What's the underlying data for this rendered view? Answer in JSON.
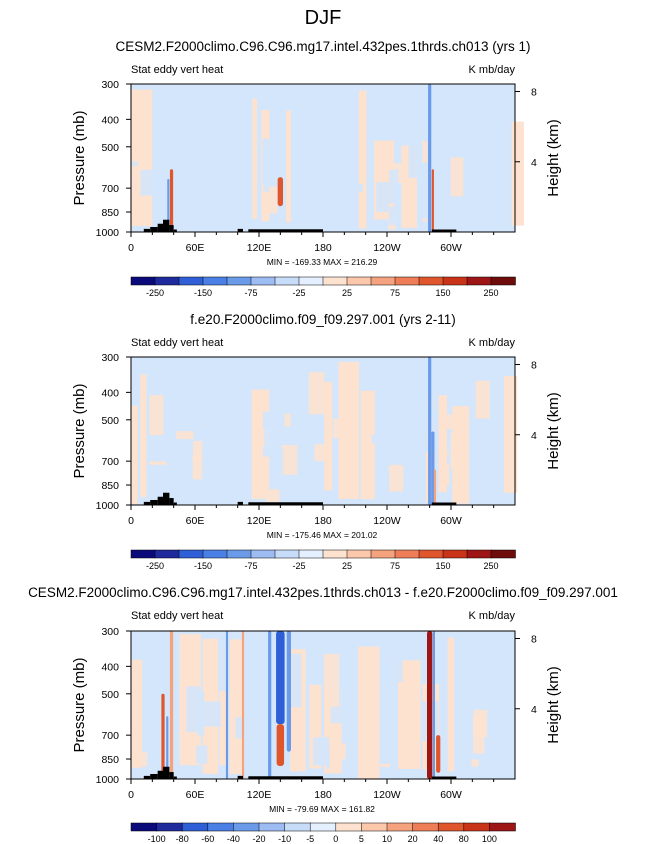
{
  "figure_title": "DJF",
  "colors": {
    "blue4": "#1f2a9c",
    "blue3": "#2f5fd6",
    "blue2": "#6b9ae8",
    "blue1": "#d4e6fb",
    "red1": "#fde2cf",
    "red2": "#f5a27e",
    "red3": "#e0562c",
    "red4": "#9e1515",
    "topo": "#000000",
    "frame": "#000000"
  },
  "chart_data": [
    {
      "type": "heatmap",
      "panel": "top",
      "title": "CESM2.F2000climo.C96.C96.mg17.intel.432pes.1thrds.ch013 (yrs 1)",
      "left_label": "Stat eddy vert heat",
      "right_label": "K mb/day",
      "ylabel": "Pressure (mb)",
      "ylabel_right": "Height (km)",
      "y_ticks": [
        "300",
        "400",
        "500",
        "700",
        "850",
        "1000"
      ],
      "y_tick_values": [
        300,
        400,
        500,
        700,
        850,
        1000
      ],
      "y_right_ticks": [
        "8",
        "4"
      ],
      "y_right_values": [
        8,
        4
      ],
      "x_ticks": [
        "0",
        "60E",
        "120E",
        "180",
        "120W",
        "60W"
      ],
      "x_tick_values": [
        0,
        60,
        120,
        180,
        240,
        300
      ],
      "xlim": [
        0,
        360
      ],
      "ylim": [
        1000,
        300
      ],
      "stats": "MIN = -169.33  MAX = 216.29",
      "colorbar_labels": [
        "-250",
        "-150",
        "-75",
        "-25",
        "25",
        "75",
        "150",
        "250"
      ],
      "features": [
        {
          "lon": 38,
          "p_top": 600,
          "p_bottom": 1000,
          "width": 3,
          "level": 3
        },
        {
          "lon": 35,
          "p_top": 650,
          "p_bottom": 1000,
          "width": 2,
          "level": -2
        },
        {
          "lon": 140,
          "p_top": 640,
          "p_bottom": 810,
          "width": 5,
          "level": 3
        },
        {
          "lon": 280,
          "p_top": 300,
          "p_bottom": 1000,
          "width": 3,
          "level": -2
        },
        {
          "lon": 283,
          "p_top": 600,
          "p_bottom": 1000,
          "width": 2,
          "level": 3
        }
      ]
    },
    {
      "type": "heatmap",
      "panel": "middle",
      "title": "f.e20.F2000climo.f09_f09.297.001 (yrs 2-11)",
      "left_label": "Stat eddy vert heat",
      "right_label": "K mb/day",
      "ylabel": "Pressure (mb)",
      "ylabel_right": "Height (km)",
      "y_ticks": [
        "300",
        "400",
        "500",
        "700",
        "850",
        "1000"
      ],
      "y_tick_values": [
        300,
        400,
        500,
        700,
        850,
        1000
      ],
      "y_right_ticks": [
        "8",
        "4"
      ],
      "y_right_values": [
        8,
        4
      ],
      "x_ticks": [
        "0",
        "60E",
        "120E",
        "180",
        "120W",
        "60W"
      ],
      "x_tick_values": [
        0,
        60,
        120,
        180,
        240,
        300
      ],
      "xlim": [
        0,
        360
      ],
      "ylim": [
        1000,
        300
      ],
      "stats": "MIN = -175.46  MAX = 201.02",
      "colorbar_labels": [
        "-250",
        "-150",
        "-75",
        "-25",
        "25",
        "75",
        "150",
        "250"
      ],
      "features": [
        {
          "lon": 280,
          "p_top": 300,
          "p_bottom": 1000,
          "width": 3,
          "level": -2
        },
        {
          "lon": 283,
          "p_top": 550,
          "p_bottom": 1000,
          "width": 3,
          "level": -2
        },
        {
          "lon": 285,
          "p_top": 750,
          "p_bottom": 1000,
          "width": 2,
          "level": 2
        }
      ]
    },
    {
      "type": "heatmap",
      "panel": "difference",
      "title": "CESM2.F2000climo.C96.C96.mg17.intel.432pes.1thrds.ch013 - f.e20.F2000climo.f09_f09.297.001",
      "left_label": "Stat eddy vert heat",
      "right_label": "K mb/day",
      "ylabel": "Pressure (mb)",
      "ylabel_right": "Height (km)",
      "y_ticks": [
        "300",
        "400",
        "500",
        "700",
        "850",
        "1000"
      ],
      "y_tick_values": [
        300,
        400,
        500,
        700,
        850,
        1000
      ],
      "y_right_ticks": [
        "8",
        "4"
      ],
      "y_right_values": [
        8,
        4
      ],
      "x_ticks": [
        "0",
        "60E",
        "120E",
        "180",
        "120W",
        "60W"
      ],
      "x_tick_values": [
        0,
        60,
        120,
        180,
        240,
        300
      ],
      "xlim": [
        0,
        360
      ],
      "ylim": [
        1000,
        300
      ],
      "stats": "MIN = -79.69  MAX = 161.82",
      "colorbar_labels": [
        "-100",
        "-80",
        "-60",
        "-40",
        "-20",
        "-10",
        "-5",
        "0",
        "5",
        "10",
        "20",
        "40",
        "80",
        "100"
      ],
      "features": [
        {
          "lon": 30,
          "p_top": 500,
          "p_bottom": 1000,
          "width": 3,
          "level": 3
        },
        {
          "lon": 38,
          "p_top": 300,
          "p_bottom": 1000,
          "width": 3,
          "level": 2
        },
        {
          "lon": 34,
          "p_top": 600,
          "p_bottom": 1000,
          "width": 2,
          "level": -2
        },
        {
          "lon": 130,
          "p_top": 300,
          "p_bottom": 1000,
          "width": 3,
          "level": -2
        },
        {
          "lon": 140,
          "p_top": 300,
          "p_bottom": 640,
          "width": 8,
          "level": -3
        },
        {
          "lon": 140,
          "p_top": 640,
          "p_bottom": 900,
          "width": 7,
          "level": 3
        },
        {
          "lon": 148,
          "p_top": 300,
          "p_bottom": 800,
          "width": 4,
          "level": -2
        },
        {
          "lon": 280,
          "p_top": 300,
          "p_bottom": 1000,
          "width": 5,
          "level": 4
        },
        {
          "lon": 284,
          "p_top": 300,
          "p_bottom": 1000,
          "width": 2,
          "level": -2
        },
        {
          "lon": 288,
          "p_top": 700,
          "p_bottom": 950,
          "width": 4,
          "level": 3
        },
        {
          "lon": 90,
          "p_top": 300,
          "p_bottom": 1000,
          "width": 2,
          "level": -2
        },
        {
          "lon": 105,
          "p_top": 300,
          "p_bottom": 1000,
          "width": 2,
          "level": 2
        }
      ]
    }
  ],
  "topography": [
    {
      "lon0": 12,
      "lon1": 18,
      "p": 975
    },
    {
      "lon0": 18,
      "lon1": 25,
      "p": 960
    },
    {
      "lon0": 25,
      "lon1": 30,
      "p": 935
    },
    {
      "lon0": 30,
      "lon1": 36,
      "p": 905
    },
    {
      "lon0": 36,
      "lon1": 40,
      "p": 945
    },
    {
      "lon0": 40,
      "lon1": 43,
      "p": 980
    },
    {
      "lon0": 100,
      "lon1": 105,
      "p": 975
    },
    {
      "lon0": 110,
      "lon1": 180,
      "p": 978
    },
    {
      "lon0": 282,
      "lon1": 305,
      "p": 980
    }
  ]
}
